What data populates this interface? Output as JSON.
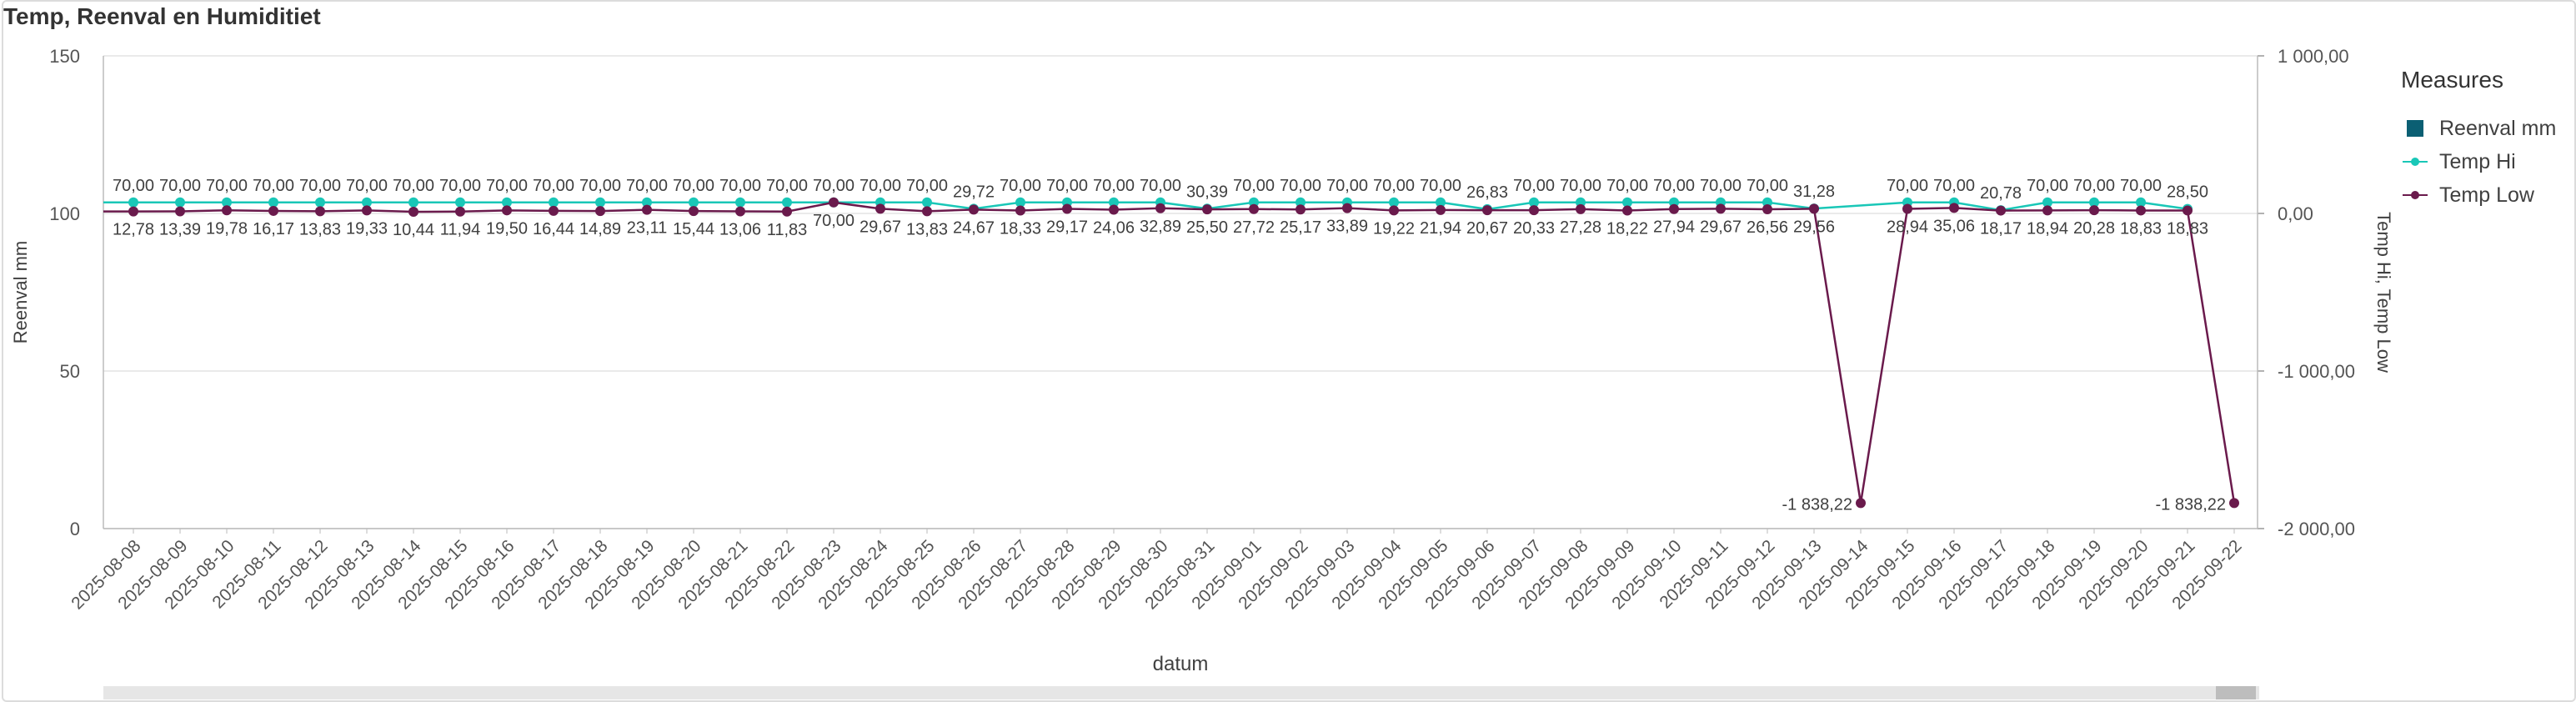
{
  "title": "Temp, Reenval en Humiditiet",
  "legend": {
    "title": "Measures",
    "items": [
      {
        "label": "Reenval mm",
        "color": "#0b5f73",
        "marker": "square"
      },
      {
        "label": "Temp Hi",
        "color": "#19c7b7",
        "marker": "line-dot"
      },
      {
        "label": "Temp Low",
        "color": "#6a1a4c",
        "marker": "line-dot"
      }
    ]
  },
  "chart_data": {
    "type": "line",
    "xlabel": "datum",
    "ylabel_left": "Reenval mm",
    "ylabel_right": "Temp Hi, Temp Low",
    "ylim_left": [
      0,
      150
    ],
    "yticks_left": [
      "0",
      "50",
      "100",
      "150"
    ],
    "ylim_right": [
      -2000,
      1000
    ],
    "yticks_right": [
      "-2 000,00",
      "-1 000,00",
      "0,00",
      "1 000,00"
    ],
    "grid": true,
    "legend_position": "right",
    "categories": [
      "2025-08-08",
      "2025-08-09",
      "2025-08-10",
      "2025-08-11",
      "2025-08-12",
      "2025-08-13",
      "2025-08-14",
      "2025-08-15",
      "2025-08-16",
      "2025-08-17",
      "2025-08-18",
      "2025-08-19",
      "2025-08-20",
      "2025-08-21",
      "2025-08-22",
      "2025-08-23",
      "2025-08-24",
      "2025-08-25",
      "2025-08-26",
      "2025-08-27",
      "2025-08-28",
      "2025-08-29",
      "2025-08-30",
      "2025-08-31",
      "2025-09-01",
      "2025-09-02",
      "2025-09-03",
      "2025-09-04",
      "2025-09-05",
      "2025-09-06",
      "2025-09-07",
      "2025-09-08",
      "2025-09-09",
      "2025-09-10",
      "2025-09-11",
      "2025-09-12",
      "2025-09-13",
      "2025-09-14",
      "2025-09-15",
      "2025-09-16",
      "2025-09-17",
      "2025-09-18",
      "2025-09-19",
      "2025-09-20",
      "2025-09-21",
      "2025-09-22"
    ],
    "series": [
      {
        "name": "Temp Hi",
        "color": "#19c7b7",
        "values": [
          70,
          70,
          70,
          70,
          70,
          70,
          70,
          70,
          70,
          70,
          70,
          70,
          70,
          70,
          70,
          70,
          70,
          70,
          29.72,
          70,
          70,
          70,
          70,
          30.39,
          70,
          70,
          70,
          70,
          70,
          26.83,
          70,
          70,
          70,
          70,
          70,
          70,
          31.28,
          null,
          70,
          70,
          20.78,
          70,
          70,
          70,
          28.5,
          null
        ],
        "labels": [
          "70,00",
          "70,00",
          "70,00",
          "70,00",
          "70,00",
          "70,00",
          "70,00",
          "70,00",
          "70,00",
          "70,00",
          "70,00",
          "70,00",
          "70,00",
          "70,00",
          "70,00",
          "70,00",
          "70,00",
          "70,00",
          "29,72",
          "70,00",
          "70,00",
          "70,00",
          "70,00",
          "30,39",
          "70,00",
          "70,00",
          "70,00",
          "70,00",
          "70,00",
          "26,83",
          "70,00",
          "70,00",
          "70,00",
          "70,00",
          "70,00",
          "70,00",
          "31,28",
          "",
          "70,00",
          "70,00",
          "20,78",
          "70,00",
          "70,00",
          "70,00",
          "28,50",
          ""
        ]
      },
      {
        "name": "Temp Low",
        "color": "#6a1a4c",
        "values": [
          12.78,
          13.39,
          19.78,
          16.17,
          13.83,
          19.33,
          10.44,
          11.94,
          19.5,
          16.44,
          14.89,
          23.11,
          15.44,
          13.06,
          11.83,
          70,
          29.67,
          13.83,
          24.67,
          18.33,
          29.17,
          24.06,
          32.89,
          25.5,
          27.72,
          25.17,
          33.89,
          19.22,
          21.94,
          20.67,
          20.33,
          27.28,
          18.22,
          27.94,
          29.67,
          26.56,
          29.56,
          -1838.22,
          28.94,
          35.06,
          18.17,
          18.94,
          20.28,
          18.83,
          18.83,
          -1838.22
        ],
        "labels": [
          "12,78",
          "13,39",
          "19,78",
          "16,17",
          "13,83",
          "19,33",
          "10,44",
          "11,94",
          "19,50",
          "16,44",
          "14,89",
          "23,11",
          "15,44",
          "13,06",
          "11,83",
          "70,00",
          "29,67",
          "13,83",
          "24,67",
          "18,33",
          "29,17",
          "24,06",
          "32,89",
          "25,50",
          "27,72",
          "25,17",
          "33,89",
          "19,22",
          "21,94",
          "20,67",
          "20,33",
          "27,28",
          "18,22",
          "27,94",
          "29,67",
          "26,56",
          "29,56",
          "-1 838,22",
          "28,94",
          "35,06",
          "18,17",
          "18,94",
          "20,28",
          "18,83",
          "18,83",
          "-1 838,22"
        ]
      }
    ]
  }
}
